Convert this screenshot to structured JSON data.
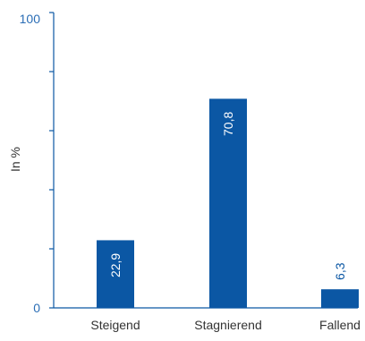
{
  "chart_data": {
    "type": "bar",
    "title": "",
    "xlabel": "",
    "ylabel": "In %",
    "ylim": [
      0,
      100
    ],
    "yticks_labeled": [
      "0",
      "100"
    ],
    "yticks_minor_count": 5,
    "categories": [
      "Steigend",
      "Stagnierend",
      "Fallend"
    ],
    "values": [
      22.9,
      70.8,
      6.3
    ],
    "value_labels": [
      "22,9",
      "70,8",
      "6,3"
    ],
    "grid": false,
    "legend": "none",
    "colors": {
      "bar": "#0b57a4",
      "axis": "#0b57a4",
      "tick_label": "#2a6db5",
      "bar_label_inside": "#ffffff",
      "bar_label_outside": "#0b57a4",
      "category_label": "#333333",
      "ylabel": "#333333"
    }
  }
}
